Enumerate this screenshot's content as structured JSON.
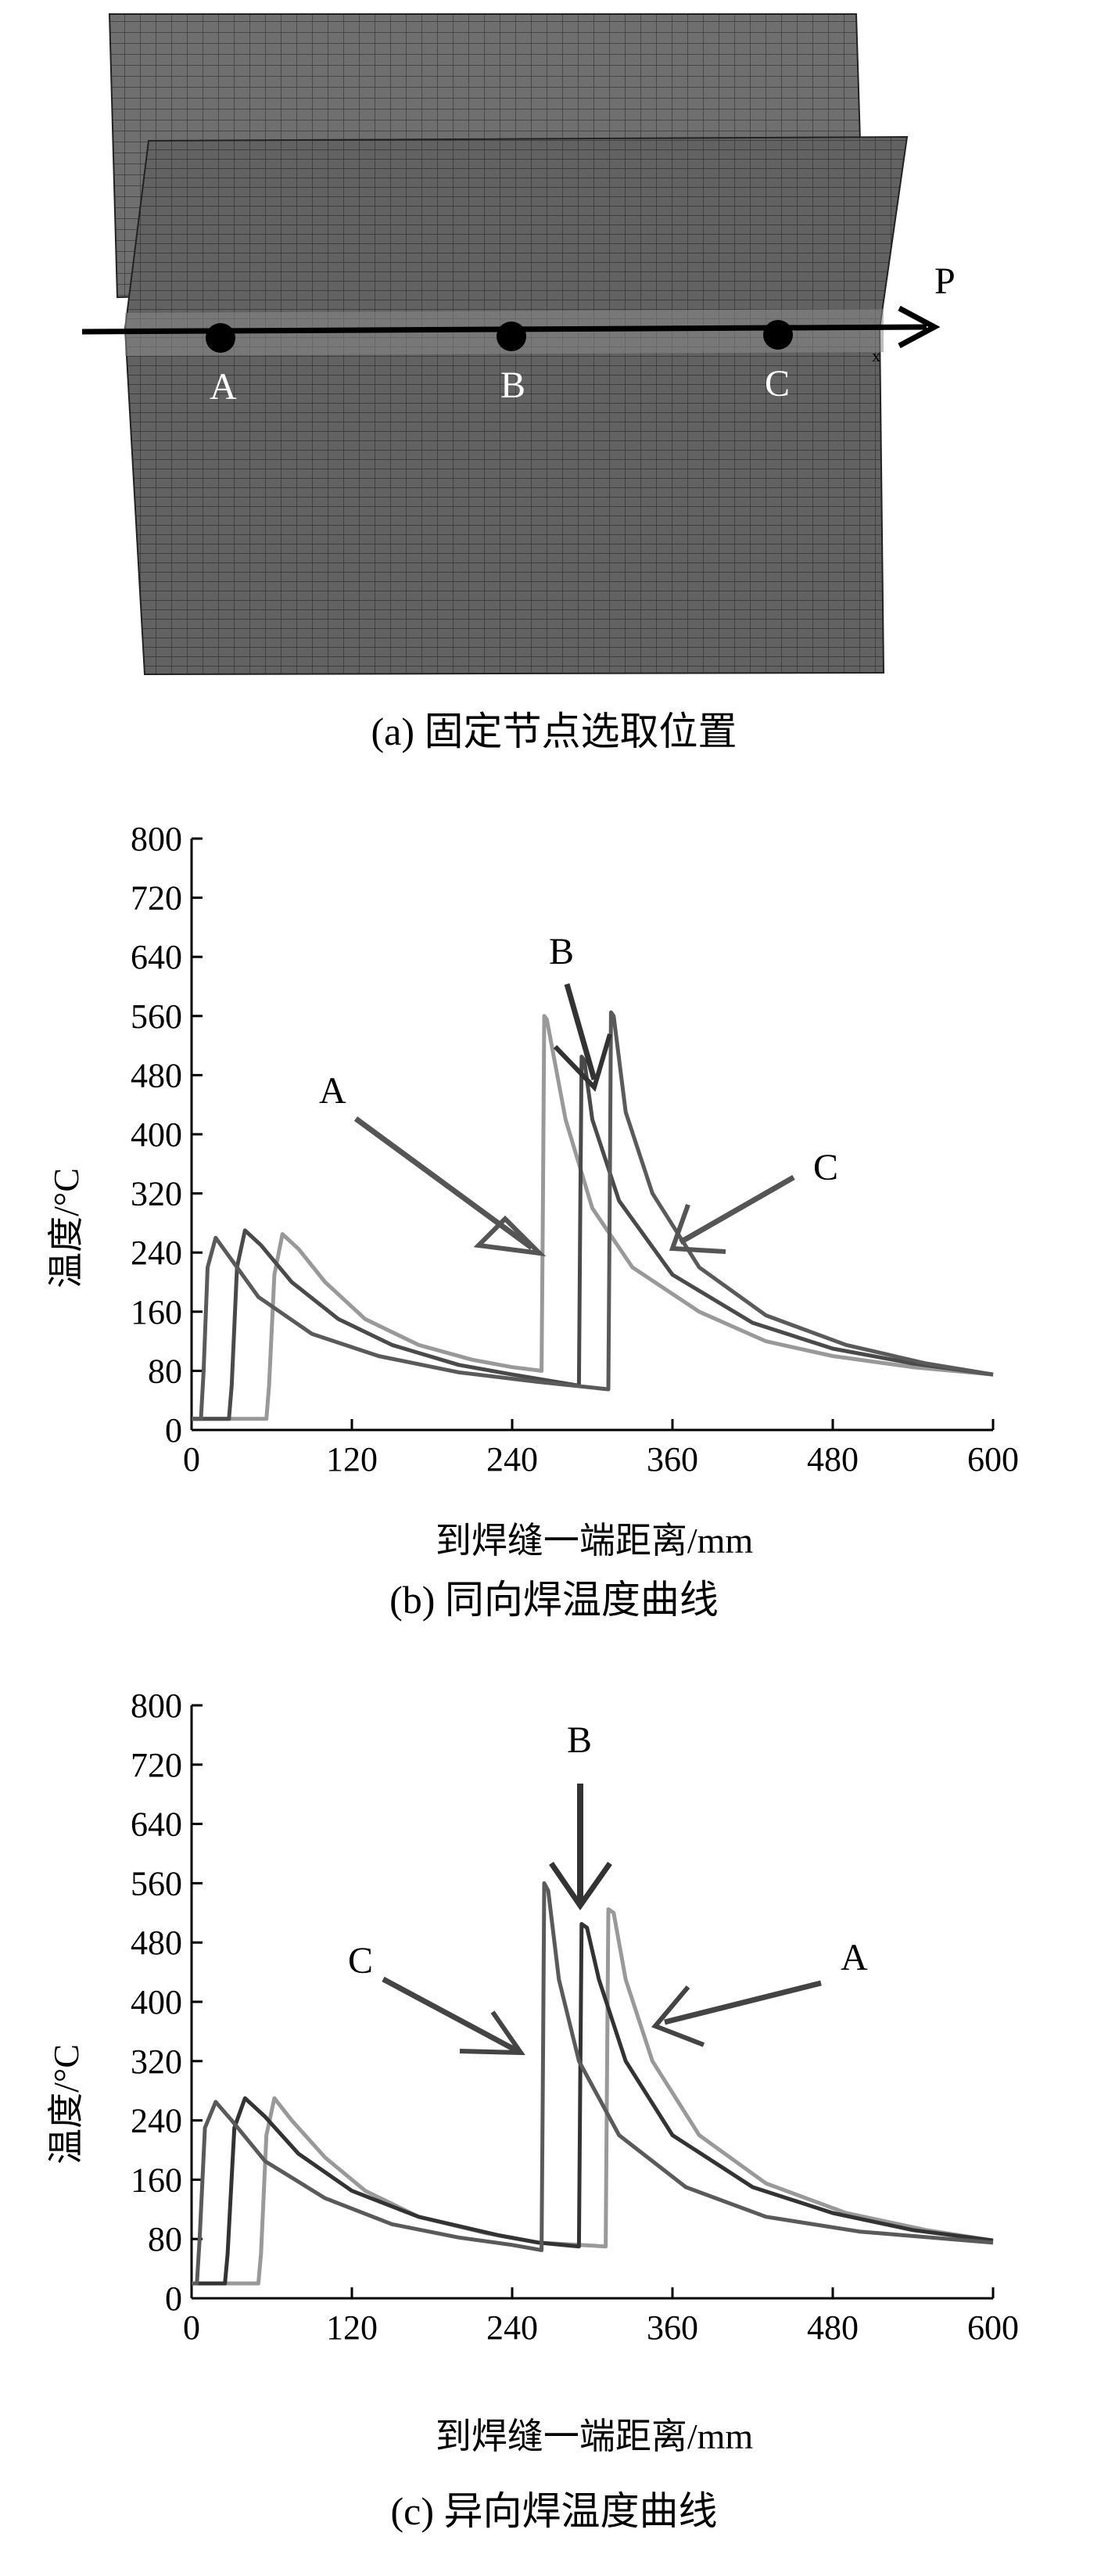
{
  "mesh": {
    "points": [
      "A",
      "B",
      "C"
    ],
    "path_label": "P",
    "corner_mark": "x",
    "caption": "(a) 固定节点选取位置"
  },
  "charts": [
    {
      "ylabel": "温度/°C",
      "xlabel": "到焊缝一端距离/mm",
      "caption": "(b) 同向焊温度曲线",
      "annotations": [
        "A",
        "B",
        "C"
      ]
    },
    {
      "ylabel": "温度/°C",
      "xlabel": "到焊缝一端距离/mm",
      "caption": "(c) 异向焊温度曲线",
      "annotations": [
        "B",
        "C",
        "A"
      ]
    }
  ],
  "chart_data": [
    {
      "type": "line",
      "title": "(b) 同向焊温度曲线",
      "xlabel": "到焊缝一端距离/mm",
      "ylabel": "温度/°C",
      "xlim": [
        0,
        600
      ],
      "ylim": [
        0,
        800
      ],
      "xticks": [
        0,
        120,
        240,
        360,
        480,
        600
      ],
      "yticks": [
        0,
        80,
        160,
        240,
        320,
        400,
        480,
        560,
        640,
        720,
        800
      ],
      "series": [
        {
          "name": "A",
          "color": "#999999",
          "x": [
            0,
            56,
            58,
            62,
            68,
            80,
            100,
            130,
            170,
            210,
            240,
            262,
            263,
            264,
            266,
            280,
            300,
            330,
            380,
            430,
            480,
            540,
            600
          ],
          "y": [
            15,
            15,
            60,
            210,
            265,
            245,
            200,
            150,
            115,
            95,
            85,
            80,
            300,
            560,
            555,
            420,
            300,
            220,
            160,
            120,
            100,
            85,
            75
          ]
        },
        {
          "name": "B",
          "color": "#4a4a4a",
          "x": [
            0,
            28,
            30,
            34,
            40,
            52,
            75,
            110,
            150,
            200,
            240,
            290,
            291,
            292,
            294,
            300,
            320,
            360,
            420,
            480,
            540,
            600
          ],
          "y": [
            15,
            15,
            60,
            220,
            270,
            250,
            200,
            150,
            115,
            88,
            75,
            60,
            300,
            505,
            500,
            420,
            310,
            210,
            145,
            110,
            90,
            75
          ]
        },
        {
          "name": "C",
          "color": "#5a5a5a",
          "x": [
            0,
            7,
            9,
            12,
            18,
            30,
            50,
            90,
            140,
            200,
            260,
            312,
            313,
            314,
            316,
            325,
            345,
            380,
            430,
            490,
            550,
            600
          ],
          "y": [
            15,
            15,
            80,
            220,
            260,
            230,
            180,
            130,
            100,
            78,
            65,
            55,
            300,
            565,
            560,
            430,
            320,
            220,
            155,
            115,
            90,
            75
          ]
        }
      ]
    },
    {
      "type": "line",
      "title": "(c) 异向焊温度曲线",
      "xlabel": "到焊缝一端距离/mm",
      "ylabel": "温度/°C",
      "xlim": [
        0,
        600
      ],
      "ylim": [
        0,
        800
      ],
      "xticks": [
        0,
        120,
        240,
        360,
        480,
        600
      ],
      "yticks": [
        0,
        80,
        160,
        240,
        320,
        400,
        480,
        560,
        640,
        720,
        800
      ],
      "series": [
        {
          "name": "A",
          "color": "#999999",
          "x": [
            0,
            50,
            52,
            56,
            62,
            75,
            100,
            130,
            170,
            220,
            260,
            310,
            311,
            312,
            316,
            325,
            345,
            380,
            430,
            490,
            550,
            600
          ],
          "y": [
            20,
            20,
            60,
            220,
            270,
            240,
            190,
            145,
            110,
            88,
            75,
            70,
            300,
            525,
            520,
            430,
            320,
            220,
            155,
            115,
            92,
            78
          ]
        },
        {
          "name": "B",
          "color": "#333333",
          "x": [
            0,
            25,
            27,
            32,
            40,
            55,
            80,
            120,
            170,
            230,
            260,
            290,
            291,
            292,
            296,
            305,
            325,
            360,
            420,
            480,
            540,
            600
          ],
          "y": [
            20,
            20,
            60,
            230,
            270,
            245,
            195,
            145,
            110,
            85,
            75,
            70,
            300,
            505,
            500,
            430,
            320,
            220,
            150,
            115,
            92,
            78
          ]
        },
        {
          "name": "C",
          "color": "#5a5a5a",
          "x": [
            0,
            4,
            6,
            10,
            18,
            30,
            55,
            100,
            150,
            200,
            240,
            262,
            263,
            264,
            267,
            275,
            290,
            320,
            370,
            430,
            500,
            600
          ],
          "y": [
            20,
            20,
            80,
            230,
            265,
            240,
            185,
            135,
            100,
            82,
            72,
            65,
            300,
            560,
            550,
            430,
            320,
            220,
            150,
            110,
            90,
            75
          ]
        }
      ]
    }
  ]
}
